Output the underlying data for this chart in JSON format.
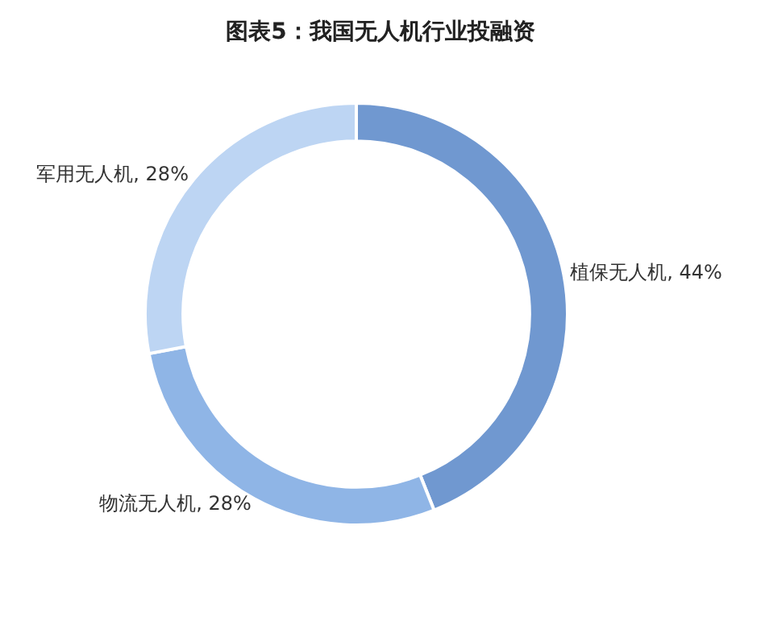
{
  "chart_data": {
    "type": "donut",
    "title": "图表5：我国无人机行业投融资",
    "categories": [
      "植保无人机",
      "物流无人机",
      "军用无人机"
    ],
    "values": [
      44,
      28,
      28
    ],
    "value_labels": [
      "44%",
      "28%",
      "28%"
    ],
    "colors": [
      "#7098d0",
      "#8fb5e6",
      "#bdd5f3"
    ],
    "legend": false
  }
}
